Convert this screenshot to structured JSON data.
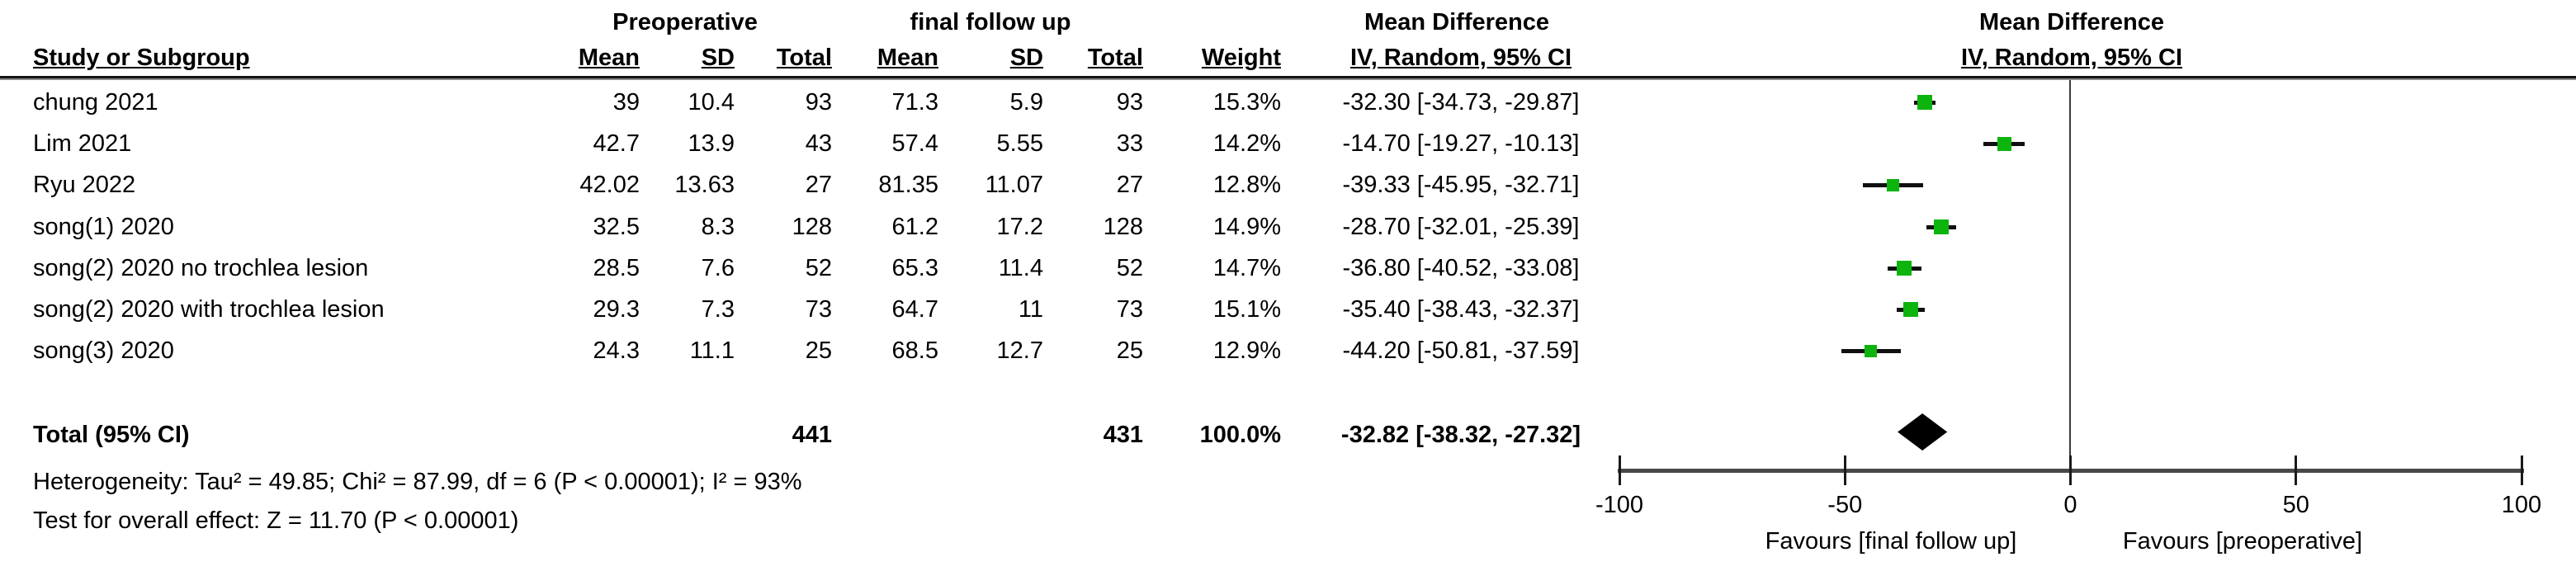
{
  "group_headers": {
    "preoperative": "Preoperative",
    "final_follow_up": "final follow up",
    "mean_difference_left": "Mean Difference",
    "mean_difference_right": "Mean Difference"
  },
  "columns": {
    "study": "Study or Subgroup",
    "pre_mean": "Mean",
    "pre_sd": "SD",
    "pre_total": "Total",
    "fu_mean": "Mean",
    "fu_sd": "SD",
    "fu_total": "Total",
    "weight": "Weight",
    "ci": "IV, Random, 95% CI",
    "ci_right": "IV, Random, 95% CI"
  },
  "rows": [
    {
      "study": "chung 2021",
      "pre_mean": "39",
      "pre_sd": "10.4",
      "pre_total": "93",
      "fu_mean": "71.3",
      "fu_sd": "5.9",
      "fu_total": "93",
      "weight": "15.3%",
      "ci_text": "-32.30 [-34.73, -29.87]",
      "md": -32.3,
      "lo": -34.73,
      "hi": -29.87,
      "size": 18
    },
    {
      "study": "Lim 2021",
      "pre_mean": "42.7",
      "pre_sd": "13.9",
      "pre_total": "43",
      "fu_mean": "57.4",
      "fu_sd": "5.55",
      "fu_total": "33",
      "weight": "14.2%",
      "ci_text": "-14.70 [-19.27, -10.13]",
      "md": -14.7,
      "lo": -19.27,
      "hi": -10.13,
      "size": 17
    },
    {
      "study": "Ryu 2022",
      "pre_mean": "42.02",
      "pre_sd": "13.63",
      "pre_total": "27",
      "fu_mean": "81.35",
      "fu_sd": "11.07",
      "fu_total": "27",
      "weight": "12.8%",
      "ci_text": "-39.33 [-45.95, -32.71]",
      "md": -39.33,
      "lo": -45.95,
      "hi": -32.71,
      "size": 15
    },
    {
      "study": "song(1) 2020",
      "pre_mean": "32.5",
      "pre_sd": "8.3",
      "pre_total": "128",
      "fu_mean": "61.2",
      "fu_sd": "17.2",
      "fu_total": "128",
      "weight": "14.9%",
      "ci_text": "-28.70 [-32.01, -25.39]",
      "md": -28.7,
      "lo": -32.01,
      "hi": -25.39,
      "size": 18
    },
    {
      "study": "song(2) 2020 no trochlea lesion",
      "pre_mean": "28.5",
      "pre_sd": "7.6",
      "pre_total": "52",
      "fu_mean": "65.3",
      "fu_sd": "11.4",
      "fu_total": "52",
      "weight": "14.7%",
      "ci_text": "-36.80 [-40.52, -33.08]",
      "md": -36.8,
      "lo": -40.52,
      "hi": -33.08,
      "size": 18
    },
    {
      "study": "song(2) 2020 with trochlea lesion",
      "pre_mean": "29.3",
      "pre_sd": "7.3",
      "pre_total": "73",
      "fu_mean": "64.7",
      "fu_sd": "11",
      "fu_total": "73",
      "weight": "15.1%",
      "ci_text": "-35.40 [-38.43, -32.37]",
      "md": -35.4,
      "lo": -38.43,
      "hi": -32.37,
      "size": 18
    },
    {
      "study": "song(3) 2020",
      "pre_mean": "24.3",
      "pre_sd": "11.1",
      "pre_total": "25",
      "fu_mean": "68.5",
      "fu_sd": "12.7",
      "fu_total": "25",
      "weight": "12.9%",
      "ci_text": "-44.20 [-50.81, -37.59]",
      "md": -44.2,
      "lo": -50.81,
      "hi": -37.59,
      "size": 15
    }
  ],
  "total_row": {
    "study": "Total (95% CI)",
    "pre_total": "441",
    "fu_total": "431",
    "weight": "100.0%",
    "ci_text": "-32.82 [-38.32, -27.32]",
    "md": -32.82,
    "lo": -38.32,
    "hi": -27.32
  },
  "footer": {
    "heterogeneity": "Heterogeneity: Tau² = 49.85; Chi² = 87.99, df = 6 (P < 0.00001); I² = 93%",
    "overall_effect": "Test for overall effect: Z = 11.70 (P < 0.00001)"
  },
  "axis": {
    "ticks": [
      -100,
      -50,
      0,
      50,
      100
    ],
    "tick_labels": [
      "-100",
      "-50",
      "0",
      "50",
      "100"
    ],
    "min": -100,
    "max": 100,
    "favours_left": "Favours [final follow up]",
    "favours_right": "Favours [preoperative]"
  },
  "colors": {
    "marker_green": "#0db40d",
    "diamond_black": "#000000",
    "axis_gray": "#474747",
    "text_black": "#000000"
  },
  "chart_data": {
    "type": "forest",
    "title": "Mean Difference, IV, Random, 95% CI (Preoperative vs final follow up)",
    "studies": [
      "chung 2021",
      "Lim 2021",
      "Ryu 2022",
      "song(1) 2020",
      "song(2) 2020 no trochlea lesion",
      "song(2) 2020 with trochlea lesion",
      "song(3) 2020"
    ],
    "mean_difference": [
      -32.3,
      -14.7,
      -39.33,
      -28.7,
      -36.8,
      -35.4,
      -44.2
    ],
    "ci_low": [
      -34.73,
      -19.27,
      -45.95,
      -32.01,
      -40.52,
      -38.43,
      -50.81
    ],
    "ci_high": [
      -29.87,
      -10.13,
      -32.71,
      -25.39,
      -33.08,
      -32.37,
      -37.59
    ],
    "weights_pct": [
      15.3,
      14.2,
      12.8,
      14.9,
      14.7,
      15.1,
      12.9
    ],
    "preoperative": {
      "mean": [
        39,
        42.7,
        42.02,
        32.5,
        28.5,
        29.3,
        24.3
      ],
      "sd": [
        10.4,
        13.9,
        13.63,
        8.3,
        7.6,
        7.3,
        11.1
      ],
      "total": [
        93,
        43,
        27,
        128,
        52,
        73,
        25
      ]
    },
    "final_follow_up": {
      "mean": [
        71.3,
        57.4,
        81.35,
        61.2,
        65.3,
        64.7,
        68.5
      ],
      "sd": [
        5.9,
        5.55,
        11.07,
        17.2,
        11.4,
        11,
        12.7
      ],
      "total": [
        93,
        33,
        27,
        128,
        52,
        73,
        25
      ]
    },
    "total_effect": {
      "md": -32.82,
      "ci_low": -38.32,
      "ci_high": -27.32,
      "pre_total": 441,
      "fu_total": 431
    },
    "heterogeneity": {
      "tau2": 49.85,
      "chi2": 87.99,
      "df": 6,
      "p": "< 0.00001",
      "i2_pct": 93
    },
    "overall_effect": {
      "z": 11.7,
      "p": "< 0.00001"
    },
    "xlim": [
      -100,
      100
    ],
    "x_ticks": [
      -100,
      -50,
      0,
      50,
      100
    ],
    "xlabel_left": "Favours [final follow up]",
    "xlabel_right": "Favours [preoperative]"
  }
}
